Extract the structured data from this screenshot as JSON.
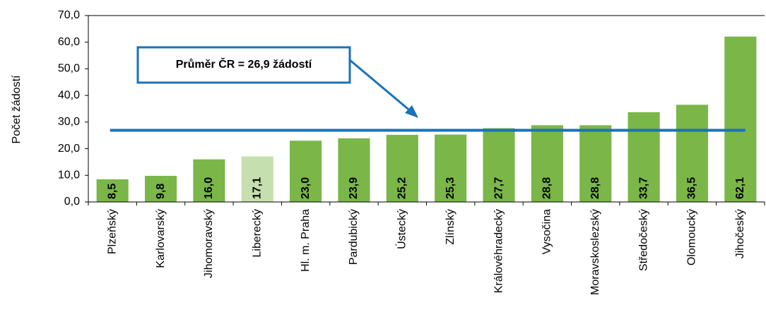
{
  "chart_data": {
    "type": "bar",
    "y_label": "Počet žádostí",
    "categories": [
      "Plzeňský",
      "Karlovarský",
      "Jihomoravský",
      "Liberecký",
      "Hl. m. Praha",
      "Pardubický",
      "Ústecký",
      "Zlínský",
      "Královéhradecký",
      "Vysočina",
      "Moravskoslezský",
      "Středočeský",
      "Olomoucký",
      "Jihočeský"
    ],
    "values": [
      8.5,
      9.8,
      16.0,
      17.1,
      23.0,
      23.9,
      25.2,
      25.3,
      27.7,
      28.8,
      28.8,
      33.7,
      36.5,
      62.1
    ],
    "value_labels": [
      "8,5",
      "9,8",
      "16,0",
      "17,1",
      "23,0",
      "23,9",
      "25,2",
      "25,3",
      "27,7",
      "28,8",
      "28,8",
      "33,7",
      "36,5",
      "62,1"
    ],
    "colors": [
      "#7ab648",
      "#7ab648",
      "#7ab648",
      "#c5dfae",
      "#7ab648",
      "#7ab648",
      "#7ab648",
      "#7ab648",
      "#7ab648",
      "#7ab648",
      "#7ab648",
      "#7ab648",
      "#7ab648",
      "#7ab648"
    ],
    "average": {
      "value": 26.9,
      "label": "Průměr ČR = 26,9 žádostí",
      "color": "#1a72b8"
    },
    "ylim": [
      0,
      70
    ],
    "yticks": [
      {
        "value": 0,
        "label": "0,0"
      },
      {
        "value": 10,
        "label": "10,0"
      },
      {
        "value": 20,
        "label": "20,0"
      },
      {
        "value": 30,
        "label": "30,0"
      },
      {
        "value": 40,
        "label": "40,0"
      },
      {
        "value": 50,
        "label": "50,0"
      },
      {
        "value": 60,
        "label": "60,0"
      },
      {
        "value": 70,
        "label": "70,0"
      }
    ],
    "grid": false
  }
}
